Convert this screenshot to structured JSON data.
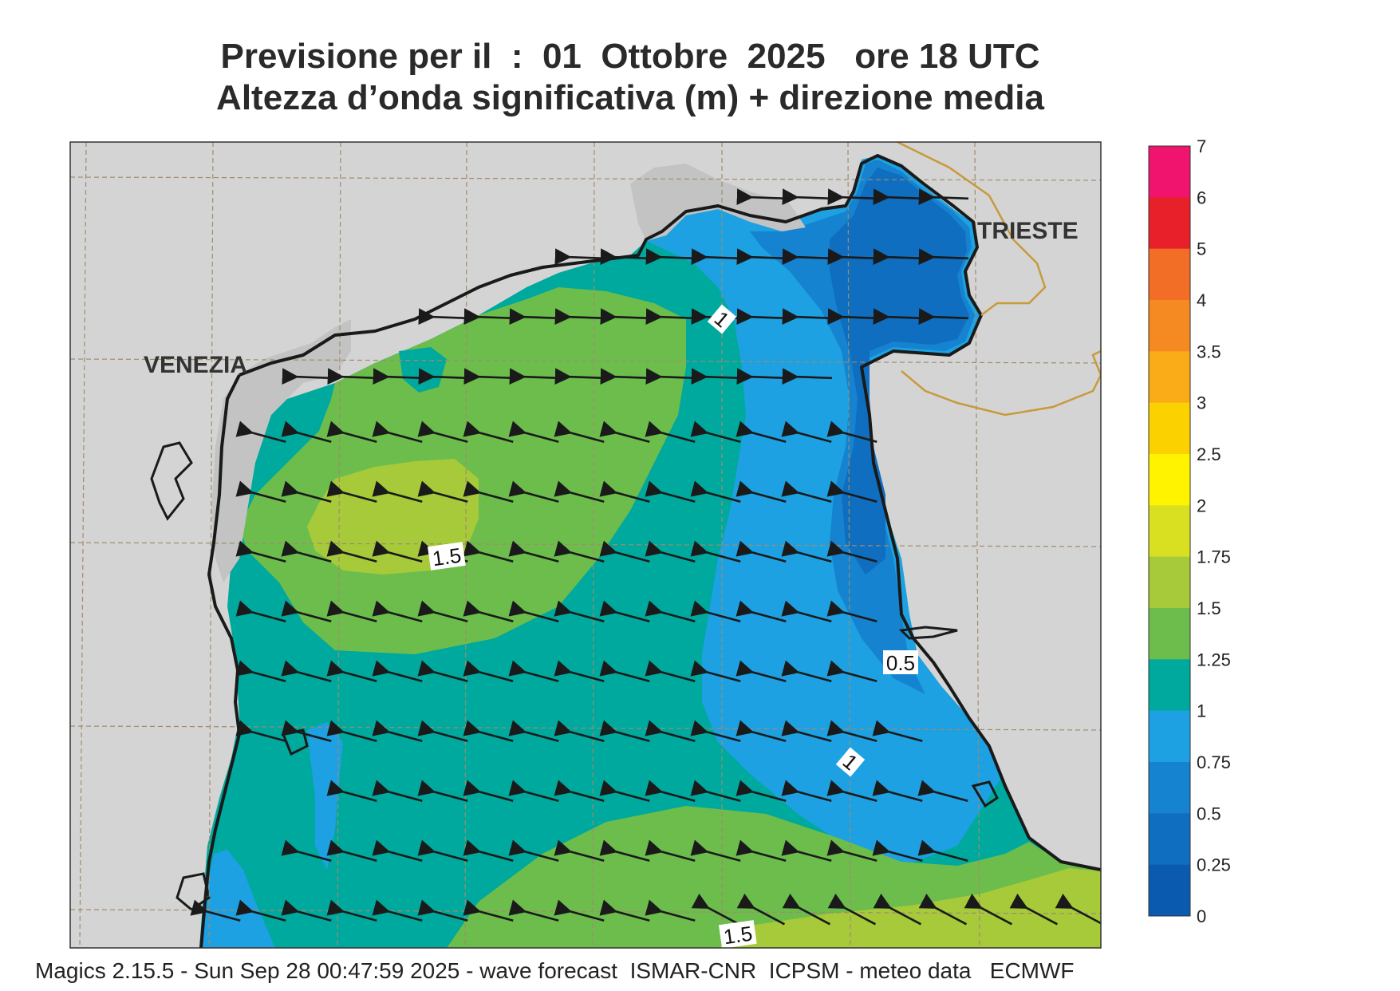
{
  "title": {
    "line1": "Previsione per il  :  01  Ottobre  2025   ore 18 UTC",
    "line2": "Altezza d’onda significativa (m) + direzione media"
  },
  "cities": {
    "venezia": "VENEZIA",
    "trieste": "TRIESTE"
  },
  "contour_labels": {
    "upper_one": "1",
    "center_one_five": "1.5",
    "right_half": "0.5",
    "right_one": "1",
    "bottom_one_five": "1.5"
  },
  "colorbar": {
    "ticks": [
      "7",
      "6",
      "5",
      "4",
      "3.5",
      "3",
      "2.5",
      "2",
      "1.75",
      "1.5",
      "1.25",
      "1",
      "0.75",
      "0.5",
      "0.25",
      "0"
    ],
    "colors": [
      "#f0146e",
      "#e8202a",
      "#f26d25",
      "#f58a23",
      "#f9ab18",
      "#fbd100",
      "#fff300",
      "#d9e021",
      "#a6ca3a",
      "#6cbd4c",
      "#00a99d",
      "#1da1e2",
      "#1583cf",
      "#0f6ebf",
      "#0a5bb0"
    ]
  },
  "footer": "Magics 2.15.5 - Sun Sep 28 00:47:59 2025 - wave forecast  ISMAR-CNR  ICPSM - meteo data   ECMWF",
  "map_colors": {
    "land": "#d4d4d4",
    "coast": "#1a1a1a",
    "border": "#c79a3a",
    "grid": "#a08c6c",
    "wave_1_1_25": "#00a99d",
    "wave_1_25_1_5": "#6cbd4c",
    "wave_1_5_1_75": "#a6ca3a",
    "wave_0_75_1": "#1da1e2",
    "wave_0_5_0_75": "#1583cf",
    "wave_0_25_0_5": "#0f6ebf"
  }
}
